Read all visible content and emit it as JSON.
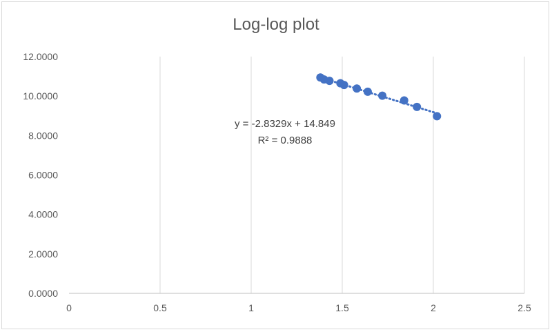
{
  "chart_data": {
    "type": "scatter",
    "title": "Log-log plot",
    "xlabel": "",
    "ylabel": "",
    "xlim": [
      0,
      2.5
    ],
    "ylim": [
      0,
      12
    ],
    "x_ticks": [
      "0",
      "0.5",
      "1",
      "1.5",
      "2",
      "2.5"
    ],
    "y_ticks": [
      "0.0000",
      "2.0000",
      "4.0000",
      "6.0000",
      "8.0000",
      "10.0000",
      "12.0000"
    ],
    "grid": "vertical",
    "marker_color": "#4472c4",
    "trendline": {
      "type": "linear",
      "style": "dotted",
      "slope": -2.8329,
      "intercept": 14.849,
      "equation": "y = -2.8329x + 14.849",
      "r_squared": "R² = 0.9888"
    },
    "points": [
      {
        "x": 1.38,
        "y": 10.94
      },
      {
        "x": 1.4,
        "y": 10.84
      },
      {
        "x": 1.43,
        "y": 10.77
      },
      {
        "x": 1.49,
        "y": 10.65
      },
      {
        "x": 1.51,
        "y": 10.56
      },
      {
        "x": 1.58,
        "y": 10.38
      },
      {
        "x": 1.64,
        "y": 10.22
      },
      {
        "x": 1.72,
        "y": 10.02
      },
      {
        "x": 1.84,
        "y": 9.78
      },
      {
        "x": 1.91,
        "y": 9.45
      },
      {
        "x": 2.02,
        "y": 8.98
      }
    ]
  }
}
